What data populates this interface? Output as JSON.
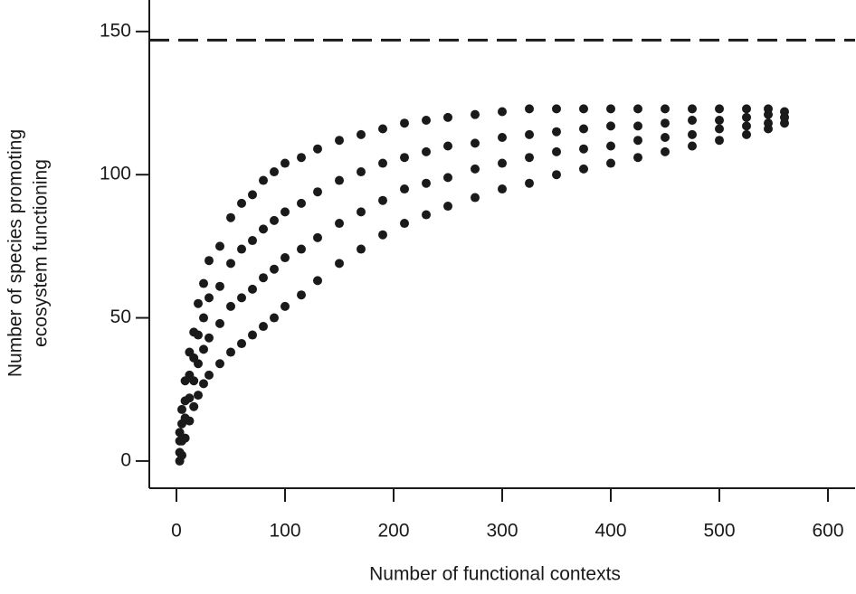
{
  "chart_data": {
    "type": "scatter",
    "x_label": "Number of functional contexts",
    "y_label": [
      "Number of species promoting",
      "ecosystem functioning"
    ],
    "color": "#1a1a1a",
    "reference_line": 147,
    "xlim": [
      -25,
      625
    ],
    "ylim": [
      -9.5,
      161
    ],
    "xticks": [
      0,
      100,
      200,
      300,
      400,
      500,
      600
    ],
    "yticks": [
      0,
      50,
      100,
      150
    ],
    "x": [
      3,
      3,
      3,
      3,
      5,
      5,
      5,
      5,
      8,
      8,
      8,
      8,
      12,
      12,
      12,
      12,
      16,
      16,
      16,
      16,
      20,
      20,
      20,
      20,
      25,
      25,
      25,
      25,
      30,
      30,
      30,
      30,
      40,
      40,
      40,
      40,
      50,
      50,
      50,
      50,
      60,
      60,
      60,
      60,
      70,
      70,
      70,
      70,
      80,
      80,
      80,
      80,
      90,
      90,
      90,
      90,
      100,
      100,
      100,
      100,
      115,
      115,
      115,
      115,
      130,
      130,
      130,
      130,
      150,
      150,
      150,
      150,
      170,
      170,
      170,
      170,
      190,
      190,
      190,
      190,
      210,
      210,
      210,
      210,
      230,
      230,
      230,
      230,
      250,
      250,
      250,
      250,
      275,
      275,
      275,
      275,
      300,
      300,
      300,
      300,
      325,
      325,
      325,
      325,
      350,
      350,
      350,
      350,
      375,
      375,
      375,
      375,
      400,
      400,
      400,
      400,
      425,
      425,
      425,
      425,
      450,
      450,
      450,
      450,
      475,
      475,
      475,
      475,
      500,
      500,
      500,
      500,
      525,
      525,
      525,
      525,
      545,
      545,
      545,
      545,
      560,
      560,
      560
    ],
    "y": [
      0,
      3,
      7,
      10,
      2,
      7,
      13,
      18,
      8,
      15,
      21,
      28,
      14,
      22,
      30,
      38,
      19,
      28,
      36,
      45,
      23,
      34,
      44,
      55,
      27,
      39,
      50,
      62,
      30,
      43,
      57,
      70,
      34,
      48,
      61,
      75,
      38,
      54,
      69,
      85,
      41,
      57,
      74,
      90,
      44,
      60,
      77,
      93,
      47,
      64,
      81,
      98,
      50,
      67,
      84,
      101,
      54,
      71,
      87,
      104,
      58,
      74,
      90,
      106,
      63,
      78,
      94,
      109,
      69,
      83,
      98,
      112,
      74,
      87,
      101,
      114,
      79,
      91,
      104,
      116,
      83,
      95,
      106,
      118,
      86,
      97,
      108,
      119,
      89,
      99,
      110,
      120,
      92,
      102,
      111,
      121,
      95,
      104,
      113,
      122,
      97,
      106,
      114,
      123,
      100,
      108,
      115,
      123,
      102,
      109,
      116,
      123,
      104,
      110,
      117,
      123,
      106,
      112,
      117,
      123,
      108,
      113,
      118,
      123,
      110,
      114,
      119,
      123,
      112,
      116,
      119,
      123,
      114,
      117,
      120,
      123,
      116,
      118,
      121,
      123,
      118,
      120,
      122
    ]
  }
}
